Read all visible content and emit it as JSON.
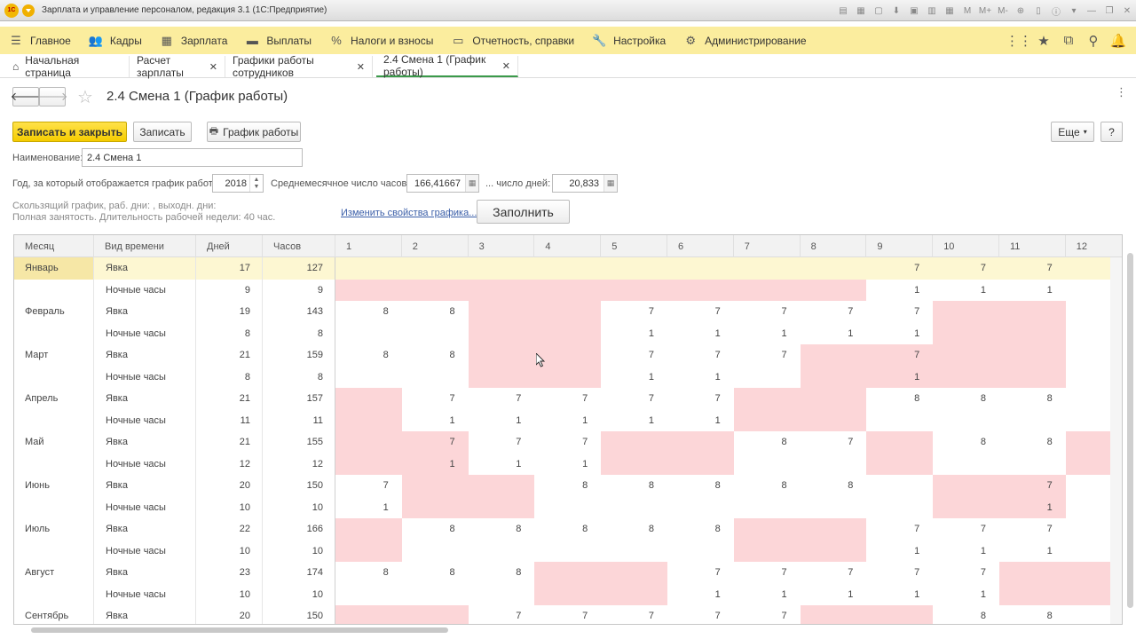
{
  "window": {
    "title": "Зарплата и управление персоналом, редакция 3.1  (1С:Предприятие)"
  },
  "sections": [
    {
      "label": "Главное",
      "icon": "menu-icon"
    },
    {
      "label": "Кадры",
      "icon": "people-icon"
    },
    {
      "label": "Зарплата",
      "icon": "calculator-icon"
    },
    {
      "label": "Выплаты",
      "icon": "wallet-icon"
    },
    {
      "label": "Налоги и взносы",
      "icon": "percent-icon"
    },
    {
      "label": "Отчетность, справки",
      "icon": "report-icon"
    },
    {
      "label": "Настройка",
      "icon": "wrench-icon"
    },
    {
      "label": "Администрирование",
      "icon": "gear-icon"
    }
  ],
  "tabs": [
    {
      "label": "Начальная страница"
    },
    {
      "label": "Расчет зарплаты"
    },
    {
      "label": "Графики работы сотрудников"
    },
    {
      "label": "2.4 Смена 1 (График работы)"
    }
  ],
  "form": {
    "title": "2.4 Смена 1 (График работы)",
    "save_close": "Записать и закрыть",
    "save": "Записать",
    "schedule": "График работы",
    "more": "Еще",
    "help": "?",
    "name_label": "Наименование:",
    "name_value": "2.4 Смена 1",
    "year_label": "Год, за который отображается график работы:",
    "year_value": "2018",
    "avg_hours_label": "Среднемесячное число часов:",
    "avg_hours_value": "166,41667",
    "days_label": "... число дней:",
    "days_value": "20,833",
    "info1": "Скользящий график, раб. дни: , выходн. дни:",
    "info2": "Полная занятость. Длительность рабочей недели: 40 час.",
    "change_link": "Изменить свойства графика...",
    "fill": "Заполнить"
  },
  "grid": {
    "headers": {
      "month": "Месяц",
      "type": "Вид времени",
      "days": "Дней",
      "hours": "Часов"
    },
    "day_headers": [
      "1",
      "2",
      "3",
      "4",
      "5",
      "6",
      "7",
      "8",
      "9",
      "10",
      "11",
      "12"
    ],
    "rows": [
      {
        "month": "Январь",
        "type": "Явка",
        "days": "17",
        "hours": "127",
        "cells": [
          "",
          "",
          "",
          "",
          "",
          "",
          "",
          "",
          "7",
          "7",
          "7",
          ""
        ],
        "off": [
          false,
          false,
          false,
          false,
          false,
          false,
          false,
          false,
          false,
          false,
          false,
          false
        ],
        "selected": true
      },
      {
        "month": "",
        "type": "Ночные часы",
        "days": "9",
        "hours": "9",
        "cells": [
          "",
          "",
          "",
          "",
          "",
          "",
          "",
          "",
          "1",
          "1",
          "1",
          ""
        ],
        "off": [
          true,
          true,
          true,
          true,
          true,
          true,
          true,
          true,
          false,
          false,
          false,
          false
        ]
      },
      {
        "month": "Февраль",
        "type": "Явка",
        "days": "19",
        "hours": "143",
        "cells": [
          "8",
          "8",
          "",
          "",
          "7",
          "7",
          "7",
          "7",
          "7",
          "",
          "",
          ""
        ],
        "off": [
          false,
          false,
          true,
          true,
          false,
          false,
          false,
          false,
          false,
          true,
          true,
          false
        ]
      },
      {
        "month": "",
        "type": "Ночные часы",
        "days": "8",
        "hours": "8",
        "cells": [
          "",
          "",
          "",
          "",
          "1",
          "1",
          "1",
          "1",
          "1",
          "",
          "",
          ""
        ],
        "off": [
          false,
          false,
          true,
          true,
          false,
          false,
          false,
          false,
          false,
          true,
          true,
          false
        ]
      },
      {
        "month": "Март",
        "type": "Явка",
        "days": "21",
        "hours": "159",
        "cells": [
          "8",
          "8",
          "",
          "",
          "7",
          "7",
          "7",
          "",
          "7",
          "",
          "",
          ""
        ],
        "off": [
          false,
          false,
          true,
          true,
          false,
          false,
          false,
          true,
          true,
          true,
          true,
          false
        ]
      },
      {
        "month": "",
        "type": "Ночные часы",
        "days": "8",
        "hours": "8",
        "cells": [
          "",
          "",
          "",
          "",
          "1",
          "1",
          "",
          "",
          "1",
          "",
          "",
          ""
        ],
        "off": [
          false,
          false,
          true,
          true,
          false,
          false,
          false,
          true,
          true,
          true,
          true,
          false
        ]
      },
      {
        "month": "Апрель",
        "type": "Явка",
        "days": "21",
        "hours": "157",
        "cells": [
          "",
          "7",
          "7",
          "7",
          "7",
          "7",
          "",
          "",
          "8",
          "8",
          "8",
          ""
        ],
        "off": [
          true,
          false,
          false,
          false,
          false,
          false,
          true,
          true,
          false,
          false,
          false,
          false
        ]
      },
      {
        "month": "",
        "type": "Ночные часы",
        "days": "11",
        "hours": "11",
        "cells": [
          "",
          "1",
          "1",
          "1",
          "1",
          "1",
          "",
          "",
          "",
          "",
          "",
          ""
        ],
        "off": [
          true,
          false,
          false,
          false,
          false,
          false,
          true,
          true,
          false,
          false,
          false,
          false
        ]
      },
      {
        "month": "Май",
        "type": "Явка",
        "days": "21",
        "hours": "155",
        "cells": [
          "",
          "7",
          "7",
          "7",
          "",
          "",
          "8",
          "7",
          "",
          "8",
          "8",
          ""
        ],
        "off": [
          true,
          true,
          false,
          false,
          true,
          true,
          false,
          false,
          true,
          false,
          false,
          true
        ]
      },
      {
        "month": "",
        "type": "Ночные часы",
        "days": "12",
        "hours": "12",
        "cells": [
          "",
          "1",
          "1",
          "1",
          "",
          "",
          "",
          "",
          "",
          "",
          "",
          ""
        ],
        "off": [
          true,
          true,
          false,
          false,
          true,
          true,
          false,
          false,
          true,
          false,
          false,
          true
        ]
      },
      {
        "month": "Июнь",
        "type": "Явка",
        "days": "20",
        "hours": "150",
        "cells": [
          "7",
          "",
          "",
          "8",
          "8",
          "8",
          "8",
          "8",
          "",
          "",
          "7",
          ""
        ],
        "off": [
          false,
          true,
          true,
          false,
          false,
          false,
          false,
          false,
          false,
          true,
          true,
          false
        ]
      },
      {
        "month": "",
        "type": "Ночные часы",
        "days": "10",
        "hours": "10",
        "cells": [
          "1",
          "",
          "",
          "",
          "",
          "",
          "",
          "",
          "",
          "",
          "1",
          ""
        ],
        "off": [
          false,
          true,
          true,
          false,
          false,
          false,
          false,
          false,
          false,
          true,
          true,
          false
        ]
      },
      {
        "month": "Июль",
        "type": "Явка",
        "days": "22",
        "hours": "166",
        "cells": [
          "",
          "8",
          "8",
          "8",
          "8",
          "8",
          "",
          "",
          "7",
          "7",
          "7",
          ""
        ],
        "off": [
          true,
          false,
          false,
          false,
          false,
          false,
          true,
          true,
          false,
          false,
          false,
          false
        ]
      },
      {
        "month": "",
        "type": "Ночные часы",
        "days": "10",
        "hours": "10",
        "cells": [
          "",
          "",
          "",
          "",
          "",
          "",
          "",
          "",
          "1",
          "1",
          "1",
          ""
        ],
        "off": [
          true,
          false,
          false,
          false,
          false,
          false,
          true,
          true,
          false,
          false,
          false,
          false
        ]
      },
      {
        "month": "Август",
        "type": "Явка",
        "days": "23",
        "hours": "174",
        "cells": [
          "8",
          "8",
          "8",
          "",
          "",
          "7",
          "7",
          "7",
          "7",
          "7",
          "",
          ""
        ],
        "off": [
          false,
          false,
          false,
          true,
          true,
          false,
          false,
          false,
          false,
          false,
          true,
          true
        ]
      },
      {
        "month": "",
        "type": "Ночные часы",
        "days": "10",
        "hours": "10",
        "cells": [
          "",
          "",
          "",
          "",
          "",
          "1",
          "1",
          "1",
          "1",
          "1",
          "",
          ""
        ],
        "off": [
          false,
          false,
          false,
          true,
          true,
          false,
          false,
          false,
          false,
          false,
          true,
          true
        ]
      },
      {
        "month": "Сентябрь",
        "type": "Явка",
        "days": "20",
        "hours": "150",
        "cells": [
          "",
          "",
          "7",
          "7",
          "7",
          "7",
          "7",
          "",
          "",
          "8",
          "8",
          ""
        ],
        "off": [
          true,
          true,
          false,
          false,
          false,
          false,
          false,
          true,
          true,
          false,
          false,
          false
        ]
      }
    ]
  }
}
